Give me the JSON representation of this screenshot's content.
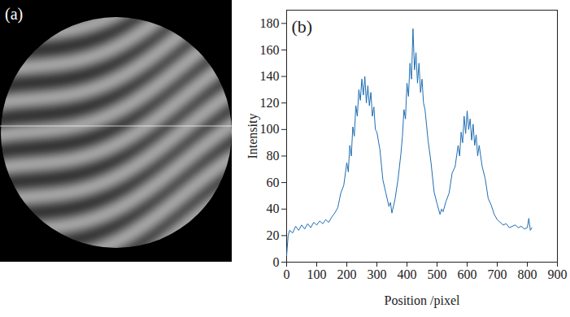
{
  "image": {
    "label": "(a)"
  },
  "chart_data": {
    "type": "line",
    "title": "(b)",
    "x_label": "Position /pixel",
    "y_label": "Intensity",
    "xlim": [
      0,
      900
    ],
    "xticks": [
      0,
      100,
      200,
      300,
      400,
      500,
      600,
      700,
      800,
      900
    ],
    "ylim": [
      0,
      190
    ],
    "yticks": [
      0,
      20,
      40,
      60,
      80,
      100,
      120,
      140,
      160,
      180
    ],
    "color": "#1f6eb4",
    "x": [
      0,
      5,
      10,
      20,
      30,
      40,
      50,
      60,
      70,
      80,
      90,
      100,
      110,
      120,
      130,
      140,
      150,
      160,
      170,
      180,
      190,
      200,
      205,
      210,
      215,
      220,
      225,
      230,
      235,
      240,
      245,
      250,
      255,
      260,
      265,
      270,
      275,
      280,
      285,
      290,
      295,
      300,
      310,
      320,
      330,
      340,
      345,
      350,
      355,
      360,
      370,
      380,
      385,
      390,
      395,
      400,
      405,
      410,
      415,
      420,
      425,
      430,
      435,
      440,
      445,
      450,
      455,
      460,
      470,
      480,
      490,
      500,
      510,
      515,
      520,
      530,
      540,
      550,
      560,
      570,
      575,
      580,
      585,
      590,
      595,
      600,
      605,
      610,
      615,
      620,
      625,
      630,
      635,
      640,
      650,
      660,
      670,
      680,
      690,
      700,
      710,
      720,
      730,
      740,
      750,
      760,
      770,
      780,
      790,
      800,
      805,
      810,
      815
    ],
    "values": [
      5,
      20,
      24,
      22,
      27,
      24,
      28,
      25,
      29,
      26,
      30,
      28,
      31,
      29,
      32,
      30,
      34,
      37,
      41,
      52,
      58,
      75,
      68,
      88,
      80,
      102,
      95,
      118,
      110,
      130,
      122,
      138,
      126,
      140,
      120,
      133,
      118,
      128,
      110,
      117,
      100,
      98,
      85,
      62,
      52,
      42,
      45,
      37,
      42,
      47,
      62,
      82,
      95,
      115,
      108,
      135,
      125,
      150,
      138,
      176,
      145,
      158,
      135,
      150,
      128,
      138,
      120,
      115,
      92,
      75,
      53,
      44,
      36,
      40,
      38,
      46,
      52,
      67,
      72,
      88,
      80,
      98,
      90,
      110,
      97,
      114,
      100,
      108,
      92,
      104,
      88,
      96,
      80,
      88,
      72,
      63,
      48,
      43,
      36,
      32,
      30,
      28,
      29,
      26,
      27,
      28,
      26,
      27,
      25,
      26,
      33,
      24,
      26
    ]
  }
}
